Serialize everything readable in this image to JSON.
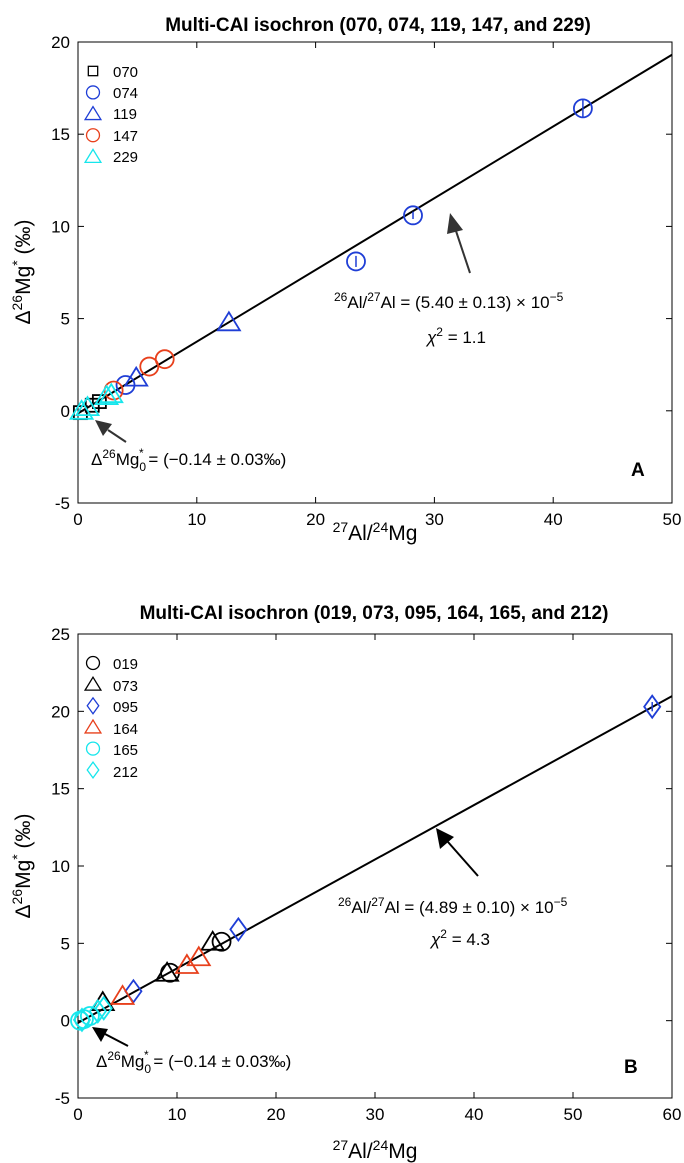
{
  "chart_data": [
    {
      "type": "scatter",
      "panel_label": "A",
      "title": "Multi-CAI isochron (070, 074, 119, 147, and 229)",
      "xlabel": {
        "pre": "",
        "sup1": "27",
        "mid": "Al/",
        "sup2": "24",
        "post": "Mg"
      },
      "ylabel": {
        "pre": "Δ",
        "sup1": "26",
        "mid": "Mg",
        "sup2": "*",
        "post": " (‰)"
      },
      "xlim": [
        0,
        50
      ],
      "ylim": [
        -5,
        20
      ],
      "xticks": [
        "0",
        "10",
        "20",
        "30",
        "40",
        "50"
      ],
      "yticks": [
        "-5",
        "0",
        "5",
        "10",
        "15",
        "20"
      ],
      "grid": false,
      "legend_position": "top-left",
      "fit": {
        "intercept": -0.14,
        "slope": 0.389
      },
      "series": [
        {
          "name": "070",
          "marker": "square",
          "color": "#000000",
          "x": [
            0.2,
            1.2,
            1.8
          ],
          "y": [
            -0.1,
            0.3,
            0.5
          ],
          "err": [
            0,
            0,
            0
          ]
        },
        {
          "name": "074",
          "marker": "circle",
          "color": "#1f3ed6",
          "x": [
            4.0,
            23.4,
            28.2,
            42.5
          ],
          "y": [
            1.4,
            8.1,
            10.6,
            16.4
          ],
          "err": [
            0,
            0.3,
            0.2,
            0.5
          ]
        },
        {
          "name": "119",
          "marker": "triangle",
          "color": "#1f3ed6",
          "x": [
            4.9,
            12.7
          ],
          "y": [
            1.8,
            4.8
          ],
          "err": [
            0,
            0
          ]
        },
        {
          "name": "147",
          "marker": "circle",
          "color": "#e8401c",
          "x": [
            3.0,
            6.0,
            7.3
          ],
          "y": [
            1.1,
            2.4,
            2.8
          ],
          "err": [
            0,
            0,
            0
          ]
        },
        {
          "name": "229",
          "marker": "triangle",
          "color": "#17e6ec",
          "x": [
            0.3,
            0.8,
            2.4,
            2.8
          ],
          "y": [
            0.0,
            0.2,
            0.8,
            0.9
          ],
          "err": [
            0,
            0,
            0,
            0
          ]
        }
      ],
      "annotation_ratio": {
        "sup1": "26",
        "a": "Al/",
        "sup2": "27",
        "b": "Al = (5.40 ± 0.13) × 10",
        "sup3": "−5"
      },
      "annotation_chi": {
        "chi": "χ",
        "sup": "2",
        "rest": " = 1.1"
      },
      "annotation_intercept": {
        "pre": "Δ",
        "sup": "26",
        "mid": "Mg",
        "sub": "0",
        "sup2": "*",
        "rest": " = (−0.14 ± 0.03‰)"
      }
    },
    {
      "type": "scatter",
      "panel_label": "B",
      "title": "Multi-CAI isochron (019, 073, 095, 164, 165, and 212)",
      "xlabel": {
        "pre": "",
        "sup1": "27",
        "mid": "Al/",
        "sup2": "24",
        "post": "Mg"
      },
      "ylabel": {
        "pre": "Δ",
        "sup1": "26",
        "mid": "Mg",
        "sup2": "*",
        "post": " (‰)"
      },
      "xlim": [
        0,
        60
      ],
      "ylim": [
        -5,
        25
      ],
      "xticks": [
        "0",
        "10",
        "20",
        "30",
        "40",
        "50",
        "60"
      ],
      "yticks": [
        "-5",
        "0",
        "5",
        "10",
        "15",
        "20",
        "25"
      ],
      "grid": false,
      "legend_position": "top-left",
      "fit": {
        "intercept": -0.14,
        "slope": 0.352
      },
      "series": [
        {
          "name": "019",
          "marker": "circle",
          "color": "#000000",
          "x": [
            9.3,
            14.5
          ],
          "y": [
            3.1,
            5.1
          ],
          "err": [
            0,
            0
          ]
        },
        {
          "name": "073",
          "marker": "triangle",
          "color": "#000000",
          "x": [
            2.5,
            9.0,
            13.6
          ],
          "y": [
            1.2,
            3.1,
            5.1
          ],
          "err": [
            0,
            0,
            0
          ]
        },
        {
          "name": "095",
          "marker": "diamond",
          "color": "#1f3ed6",
          "x": [
            5.6,
            16.2,
            58.0
          ],
          "y": [
            1.9,
            5.9,
            20.3
          ],
          "err": [
            0,
            0,
            0.3
          ]
        },
        {
          "name": "164",
          "marker": "triangle",
          "color": "#e8401c",
          "x": [
            4.5,
            11.0,
            12.2
          ],
          "y": [
            1.6,
            3.6,
            4.1
          ],
          "err": [
            0,
            0,
            0
          ]
        },
        {
          "name": "165",
          "marker": "circle",
          "color": "#17e6ec",
          "x": [
            0.2,
            0.6,
            1.2
          ],
          "y": [
            0.0,
            0.1,
            0.3
          ],
          "err": [
            0,
            0,
            0
          ]
        },
        {
          "name": "212",
          "marker": "diamond",
          "color": "#17e6ec",
          "x": [
            0.4,
            2.0,
            2.6
          ],
          "y": [
            0.05,
            0.6,
            0.8
          ],
          "err": [
            0,
            0,
            0
          ]
        }
      ],
      "annotation_ratio": {
        "sup1": "26",
        "a": "Al/",
        "sup2": "27",
        "b": "Al = (4.89 ± 0.10) × 10",
        "sup3": "−5"
      },
      "annotation_chi": {
        "chi": "χ",
        "sup": "2",
        "rest": " = 4.3"
      },
      "annotation_intercept": {
        "pre": "Δ",
        "sup": "26",
        "mid": "Mg",
        "sub": "0",
        "sup2": "*",
        "rest": " = (−0.14 ± 0.03‰)"
      }
    }
  ]
}
